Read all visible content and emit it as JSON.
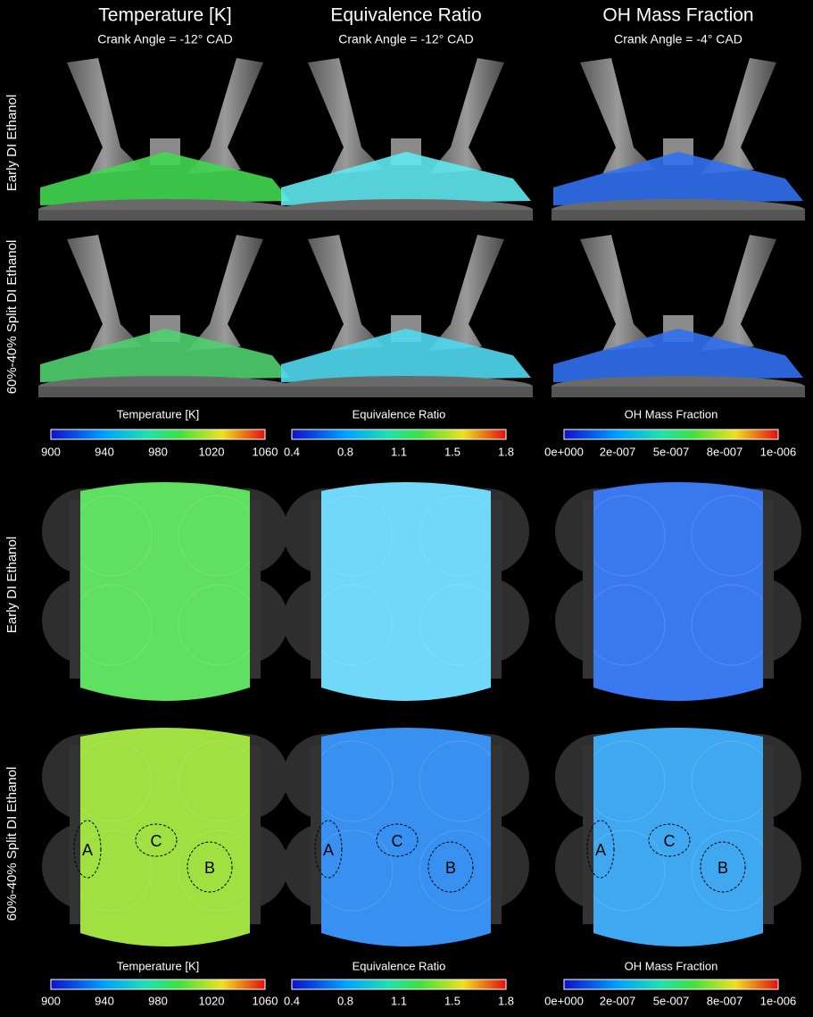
{
  "columns": [
    {
      "title": "Temperature [K]",
      "crank_angle": "Crank Angle = -12° CAD",
      "colorbar": {
        "label": "Temperature [K]",
        "ticks": [
          900,
          940,
          980,
          1020,
          1060
        ]
      }
    },
    {
      "title": "Equivalence Ratio",
      "crank_angle": "Crank Angle = -12° CAD",
      "colorbar": {
        "label": "Equivalence Ratio",
        "ticks": [
          0.4,
          0.8,
          1.1,
          1.5,
          1.8
        ]
      }
    },
    {
      "title": "OH Mass Fraction",
      "crank_angle": "Crank Angle = -4° CAD",
      "colorbar": {
        "label": "OH Mass Fraction",
        "ticks": [
          "0e+000",
          "2e-007",
          "5e-007",
          "8e-007",
          "1e-006"
        ]
      }
    }
  ],
  "row_labels": [
    "Early DI Ethanol",
    "60%-40% Split DI Ethanol"
  ],
  "markers": [
    "A",
    "B",
    "C"
  ]
}
